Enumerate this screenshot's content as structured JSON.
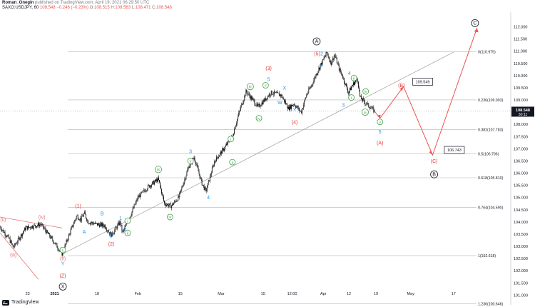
{
  "header": {
    "author": "Roman_Onegin",
    "published_text": "published on TradingView.com, April 19, 2021 06:29:50 UTC",
    "symbol": "SAXO:USDJPY, 60",
    "last_price": "108.548",
    "change_text": "−0.246 (−0.23%)",
    "ohlc": [
      {
        "label": "O:",
        "value": "108.515"
      },
      {
        "label": "H:",
        "value": "108.563"
      },
      {
        "label": "L:",
        "value": "108.471"
      },
      {
        "label": "C:",
        "value": "108.548"
      }
    ]
  },
  "footer": {
    "brand": "TradingView"
  },
  "colors": {
    "candle": "#000000",
    "axis_text": "#131722",
    "fib_line": "#b2b5be",
    "red_wave": "#e53935",
    "blue_wave": "#2196f3",
    "green_wave": "#43a047",
    "pink_wave": "#e57373",
    "projection": "#ef5350"
  },
  "chart_data": {
    "type": "candlestick",
    "instrument": "USDJPY",
    "timeframe": "60",
    "ylim": [
      100.6,
      112.6
    ],
    "y_ticks": [
      "101.000",
      "101.500",
      "102.000",
      "102.500",
      "103.000",
      "103.500",
      "104.000",
      "104.500",
      "105.000",
      "105.500",
      "106.000",
      "106.500",
      "107.000",
      "107.500",
      "108.000",
      "108.500",
      "109.000",
      "109.500",
      "110.000",
      "110.500",
      "111.000",
      "111.500",
      "112.000"
    ],
    "x_ticks": [
      {
        "label": "23",
        "t": 0.054
      },
      {
        "label": "2021",
        "t": 0.107
      },
      {
        "label": "18",
        "t": 0.19
      },
      {
        "label": "Feb",
        "t": 0.27
      },
      {
        "label": "15",
        "t": 0.353
      },
      {
        "label": "Mar",
        "t": 0.433
      },
      {
        "label": "15",
        "t": 0.515
      },
      {
        "label": "12:00",
        "t": 0.572
      },
      {
        "label": "Apr",
        "t": 0.633
      },
      {
        "label": "12",
        "t": 0.683
      },
      {
        "label": "19",
        "t": 0.736
      },
      {
        "label": "May",
        "t": 0.804
      },
      {
        "label": "17",
        "t": 0.888
      }
    ],
    "price_path": [
      {
        "t": 0.0,
        "p": 103.8
      },
      {
        "t": 0.018,
        "p": 103.3
      },
      {
        "t": 0.026,
        "p": 102.95
      },
      {
        "t": 0.05,
        "p": 103.75
      },
      {
        "t": 0.08,
        "p": 103.9
      },
      {
        "t": 0.105,
        "p": 103.2
      },
      {
        "t": 0.122,
        "p": 102.68
      },
      {
        "t": 0.132,
        "p": 103.3
      },
      {
        "t": 0.15,
        "p": 104.25
      },
      {
        "t": 0.158,
        "p": 104.1
      },
      {
        "t": 0.165,
        "p": 104.35
      },
      {
        "t": 0.172,
        "p": 104.0
      },
      {
        "t": 0.19,
        "p": 103.9
      },
      {
        "t": 0.205,
        "p": 103.85
      },
      {
        "t": 0.218,
        "p": 103.45
      },
      {
        "t": 0.235,
        "p": 104.0
      },
      {
        "t": 0.24,
        "p": 103.55
      },
      {
        "t": 0.255,
        "p": 104.25
      },
      {
        "t": 0.27,
        "p": 105.0
      },
      {
        "t": 0.29,
        "p": 105.45
      },
      {
        "t": 0.31,
        "p": 105.75
      },
      {
        "t": 0.322,
        "p": 104.75
      },
      {
        "t": 0.335,
        "p": 104.65
      },
      {
        "t": 0.35,
        "p": 105.0
      },
      {
        "t": 0.37,
        "p": 106.3
      },
      {
        "t": 0.38,
        "p": 106.65
      },
      {
        "t": 0.395,
        "p": 105.6
      },
      {
        "t": 0.403,
        "p": 105.25
      },
      {
        "t": 0.42,
        "p": 106.5
      },
      {
        "t": 0.44,
        "p": 107.05
      },
      {
        "t": 0.455,
        "p": 107.5
      },
      {
        "t": 0.47,
        "p": 108.6
      },
      {
        "t": 0.482,
        "p": 109.35
      },
      {
        "t": 0.495,
        "p": 109.0
      },
      {
        "t": 0.505,
        "p": 108.7
      },
      {
        "t": 0.518,
        "p": 109.0
      },
      {
        "t": 0.53,
        "p": 109.3
      },
      {
        "t": 0.55,
        "p": 109.2
      },
      {
        "t": 0.565,
        "p": 108.65
      },
      {
        "t": 0.575,
        "p": 108.85
      },
      {
        "t": 0.59,
        "p": 108.5
      },
      {
        "t": 0.6,
        "p": 109.2
      },
      {
        "t": 0.61,
        "p": 109.6
      },
      {
        "t": 0.62,
        "p": 110.1
      },
      {
        "t": 0.64,
        "p": 110.95
      },
      {
        "t": 0.648,
        "p": 110.5
      },
      {
        "t": 0.655,
        "p": 110.85
      },
      {
        "t": 0.665,
        "p": 110.2
      },
      {
        "t": 0.67,
        "p": 110.0
      },
      {
        "t": 0.682,
        "p": 109.3
      },
      {
        "t": 0.69,
        "p": 109.6
      },
      {
        "t": 0.7,
        "p": 109.9
      },
      {
        "t": 0.705,
        "p": 109.1
      },
      {
        "t": 0.712,
        "p": 108.95
      },
      {
        "t": 0.72,
        "p": 108.8
      },
      {
        "t": 0.733,
        "p": 108.548
      }
    ],
    "fib_levels": [
      {
        "label": "0(110.975)",
        "value": 110.975
      },
      {
        "label": "0.236(109.003)",
        "value": 109.003
      },
      {
        "label": "0.382(107.783)",
        "value": 107.783
      },
      {
        "label": "0.5(106.796)",
        "value": 106.796
      },
      {
        "label": "0.618(105.810)",
        "value": 105.81
      },
      {
        "label": "0.764(104.590)",
        "value": 104.59
      },
      {
        "label": "1(102.618)",
        "value": 102.618
      },
      {
        "label": "1.236(100.646)",
        "value": 100.646
      }
    ],
    "price_boxes": [
      {
        "text": "109.549",
        "t": 0.808,
        "p": 109.75
      },
      {
        "text": "106.743",
        "t": 0.87,
        "p": 106.95
      }
    ],
    "current_price": {
      "value": "108.548",
      "countdown": "30:11",
      "p": 108.548
    },
    "trendline": [
      {
        "t": 0.122,
        "p": 102.68
      },
      {
        "t": 0.888,
        "p": 110.96
      }
    ],
    "projection_path": [
      {
        "t": 0.733,
        "p": 108.548
      },
      {
        "t": 0.744,
        "p": 108.25
      },
      {
        "t": 0.79,
        "p": 109.549
      },
      {
        "t": 0.847,
        "p": 106.743
      },
      {
        "t": 0.934,
        "p": 111.95
      }
    ],
    "wave_labels": [
      {
        "text": "X",
        "t": 0.123,
        "p": 101.35,
        "color": "#131722",
        "circle": true
      },
      {
        "text": "A",
        "t": 0.62,
        "p": 111.4,
        "color": "#131722",
        "circle": true
      },
      {
        "text": "B",
        "t": 0.85,
        "p": 105.95,
        "color": "#131722",
        "circle": true
      },
      {
        "text": "C",
        "t": 0.93,
        "p": 112.15,
        "color": "#131722",
        "circle": true
      },
      {
        "text": "(Z)",
        "t": 0.123,
        "p": 101.8,
        "color": "#e53935",
        "circle": false
      },
      {
        "text": "(1)",
        "t": 0.153,
        "p": 104.65,
        "color": "#e53935",
        "circle": false
      },
      {
        "text": "(2)",
        "t": 0.218,
        "p": 103.1,
        "color": "#e53935",
        "circle": false
      },
      {
        "text": "(3)",
        "t": 0.526,
        "p": 110.3,
        "color": "#e53935",
        "circle": false
      },
      {
        "text": "(4)",
        "t": 0.577,
        "p": 108.1,
        "color": "#e53935",
        "circle": false
      },
      {
        "text": "(5)",
        "t": 0.621,
        "p": 110.9,
        "color": "#e53935",
        "circle": false
      },
      {
        "text": "(A)",
        "t": 0.744,
        "p": 107.25,
        "color": "#e53935",
        "circle": false
      },
      {
        "text": "(B)",
        "t": 0.786,
        "p": 109.6,
        "color": "#e53935",
        "circle": false
      },
      {
        "text": "(C)",
        "t": 0.85,
        "p": 106.5,
        "color": "#e53935",
        "circle": false
      },
      {
        "text": "Y",
        "t": 0.123,
        "p": 102.3,
        "color": "#2196f3",
        "circle": false
      },
      {
        "text": "A",
        "t": 0.165,
        "p": 103.6,
        "color": "#2196f3",
        "circle": false
      },
      {
        "text": "B",
        "t": 0.2,
        "p": 104.35,
        "color": "#2196f3",
        "circle": false
      },
      {
        "text": "C",
        "t": 0.218,
        "p": 103.45,
        "color": "#2196f3",
        "circle": false
      },
      {
        "text": "1",
        "t": 0.236,
        "p": 104.15,
        "color": "#2196f3",
        "circle": false
      },
      {
        "text": "2",
        "t": 0.245,
        "p": 103.7,
        "color": "#2196f3",
        "circle": false
      },
      {
        "text": "3",
        "t": 0.373,
        "p": 106.9,
        "color": "#2196f3",
        "circle": false
      },
      {
        "text": "4",
        "t": 0.408,
        "p": 105.0,
        "color": "#2196f3",
        "circle": false
      },
      {
        "text": "5",
        "t": 0.526,
        "p": 109.85,
        "color": "#2196f3",
        "circle": false
      },
      {
        "text": "W",
        "t": 0.548,
        "p": 108.9,
        "color": "#2196f3",
        "circle": false
      },
      {
        "text": "X",
        "t": 0.557,
        "p": 109.5,
        "color": "#2196f3",
        "circle": false
      },
      {
        "text": "Y",
        "t": 0.577,
        "p": 108.6,
        "color": "#2196f3",
        "circle": false
      },
      {
        "text": "1",
        "t": 0.627,
        "p": 110.4,
        "color": "#2196f3",
        "circle": false
      },
      {
        "text": "2",
        "t": 0.63,
        "p": 110.9,
        "color": "#2196f3",
        "circle": false
      },
      {
        "text": "3",
        "t": 0.672,
        "p": 108.8,
        "color": "#2196f3",
        "circle": false
      },
      {
        "text": "4",
        "t": 0.684,
        "p": 110.1,
        "color": "#2196f3",
        "circle": false
      },
      {
        "text": "5",
        "t": 0.744,
        "p": 107.7,
        "color": "#2196f3",
        "circle": false
      },
      {
        "text": "c",
        "t": 0.123,
        "p": 102.85,
        "color": "#43a047",
        "circle": true
      },
      {
        "text": "i",
        "t": 0.25,
        "p": 104.05,
        "color": "#43a047",
        "circle": true
      },
      {
        "text": "ii",
        "t": 0.25,
        "p": 103.55,
        "color": "#43a047",
        "circle": true
      },
      {
        "text": "iii",
        "t": 0.31,
        "p": 106.15,
        "color": "#43a047",
        "circle": true
      },
      {
        "text": "iv",
        "t": 0.333,
        "p": 104.2,
        "color": "#43a047",
        "circle": true
      },
      {
        "text": "v",
        "t": 0.373,
        "p": 106.5,
        "color": "#43a047",
        "circle": true
      },
      {
        "text": "i",
        "t": 0.452,
        "p": 107.4,
        "color": "#43a047",
        "circle": true
      },
      {
        "text": "ii",
        "t": 0.455,
        "p": 106.45,
        "color": "#43a047",
        "circle": true
      },
      {
        "text": "iii",
        "t": 0.49,
        "p": 109.55,
        "color": "#43a047",
        "circle": true
      },
      {
        "text": "iv",
        "t": 0.507,
        "p": 108.25,
        "color": "#43a047",
        "circle": true
      },
      {
        "text": "v",
        "t": 0.52,
        "p": 109.6,
        "color": "#43a047",
        "circle": true
      },
      {
        "text": "ii",
        "t": 0.693,
        "p": 109.9,
        "color": "#43a047",
        "circle": true
      },
      {
        "text": "i",
        "t": 0.688,
        "p": 109.1,
        "color": "#43a047",
        "circle": true
      },
      {
        "text": "iv",
        "t": 0.716,
        "p": 109.35,
        "color": "#43a047",
        "circle": true
      },
      {
        "text": "iii",
        "t": 0.715,
        "p": 108.5,
        "color": "#43a047",
        "circle": true
      },
      {
        "text": "v",
        "t": 0.744,
        "p": 108.1,
        "color": "#43a047",
        "circle": true
      },
      {
        "text": "(ii)",
        "t": 0.006,
        "p": 104.1,
        "color": "#e57373",
        "circle": false
      },
      {
        "text": "(iii)",
        "t": 0.026,
        "p": 102.65,
        "color": "#e57373",
        "circle": false
      },
      {
        "text": "(iv)",
        "t": 0.082,
        "p": 104.2,
        "color": "#e57373",
        "circle": false
      },
      {
        "text": "(v)",
        "t": 0.123,
        "p": 102.5,
        "color": "#e57373",
        "circle": false
      }
    ]
  }
}
